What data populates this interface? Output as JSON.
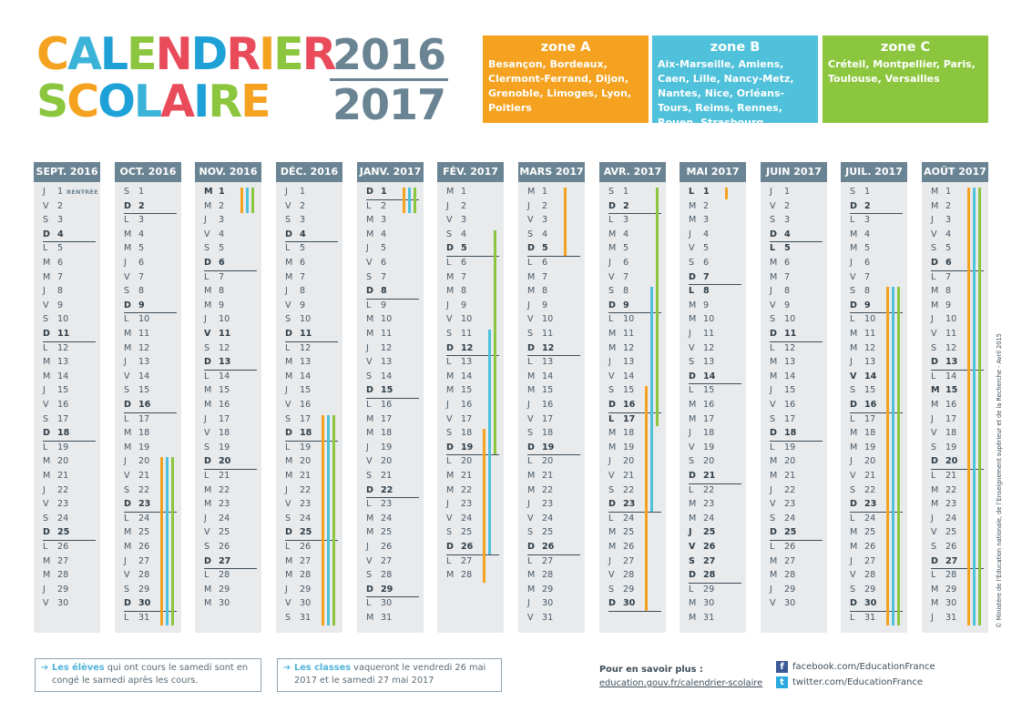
{
  "title": {
    "line1": [
      "C",
      "A",
      "L",
      "E",
      "N",
      "D",
      "R",
      "I",
      "E",
      "R"
    ],
    "line2": [
      "S",
      "C",
      "O",
      "L",
      "A",
      "I",
      "R",
      "E"
    ],
    "colors1": [
      "#f4a21f",
      "#3bb3d8",
      "#1ea1d6",
      "#8cc63e",
      "#e94b5a",
      "#1ea1d6",
      "#e94b5a",
      "#f4a21f",
      "#8cc63e",
      "#e94b5a"
    ],
    "colors2": [
      "#8cc63e",
      "#f4a21f",
      "#1ea1d6",
      "#3bb3d8",
      "#e94b5a",
      "#1ea1d6",
      "#8cc63e",
      "#f4a21f"
    ],
    "year1": "2016",
    "year2": "2017"
  },
  "zones": [
    {
      "name": "zone A",
      "cities": "Besançon, Bordeaux, Clermont-Ferrand, Dijon, Grenoble, Limoges, Lyon, Poitiers",
      "color": "#f4a21f"
    },
    {
      "name": "zone B",
      "cities": "Aix-Marseille, Amiens, Caen, Lille, Nancy-Metz, Nantes, Nice, Orléans-Tours, Reims, Rennes, Rouen, Strasbourg",
      "color": "#4fc1da"
    },
    {
      "name": "zone C",
      "cities": "Créteil, Montpellier, Paris, Toulouse, Versailles",
      "color": "#8cc63e"
    }
  ],
  "zone_colors": {
    "A": "#f4a21f",
    "B": "#4fc1da",
    "C": "#8cc63e"
  },
  "months": [
    {
      "label": "SEPT. 2016",
      "days": "JVSDLMMJVSDLMMJVSDLMMJVSDLMMJV",
      "sundays": [
        4,
        11,
        18,
        25
      ],
      "holidays": [],
      "note_day": 1,
      "note": "RENTRÉE",
      "bars": []
    },
    {
      "label": "OCT. 2016",
      "days": "SDLMMJVSDLMMJVSDLMMJVSDLMMJVSDL",
      "sundays": [
        2,
        9,
        16,
        23,
        30
      ],
      "holidays": [],
      "bars": [
        {
          "zone": "A",
          "from": 20,
          "to": 31
        },
        {
          "zone": "B",
          "from": 20,
          "to": 31
        },
        {
          "zone": "C",
          "from": 20,
          "to": 31
        }
      ]
    },
    {
      "label": "NOV. 2016",
      "days": "MMJVSDLMMJVSDLMMJVSDLMMJVSDLMM",
      "sundays": [
        6,
        13,
        20,
        27
      ],
      "holidays": [
        1,
        11
      ],
      "bars": [
        {
          "zone": "A",
          "from": 1,
          "to": 2
        },
        {
          "zone": "B",
          "from": 1,
          "to": 2
        },
        {
          "zone": "C",
          "from": 1,
          "to": 2
        }
      ]
    },
    {
      "label": "DÉC. 2016",
      "days": "JVSDLMMJVSDLMMJVSDLMMJVSDLMMJVS",
      "sundays": [
        4,
        11,
        18,
        25
      ],
      "holidays": [],
      "bars": [
        {
          "zone": "A",
          "from": 17,
          "to": 31
        },
        {
          "zone": "B",
          "from": 17,
          "to": 31
        },
        {
          "zone": "C",
          "from": 17,
          "to": 31
        }
      ]
    },
    {
      "label": "JANV. 2017",
      "days": "DLMMJVSDLMMJVSDLMMJVSDLMMJVSDLM",
      "sundays": [
        1,
        8,
        15,
        22,
        29
      ],
      "holidays": [
        1
      ],
      "bars": [
        {
          "zone": "A",
          "from": 1,
          "to": 2
        },
        {
          "zone": "B",
          "from": 1,
          "to": 2
        },
        {
          "zone": "C",
          "from": 1,
          "to": 2
        }
      ]
    },
    {
      "label": "FÉV. 2017",
      "days": "MJVSDLMMJVSDLMMJVSDLMMJVSDLM",
      "sundays": [
        5,
        12,
        19,
        26
      ],
      "holidays": [],
      "bars": [
        {
          "zone": "A",
          "from": 18,
          "to": 28
        },
        {
          "zone": "B",
          "from": 11,
          "to": 26
        },
        {
          "zone": "C",
          "from": 4,
          "to": 19
        }
      ]
    },
    {
      "label": "MARS 2017",
      "days": "MJVSDLMMJVSDLMMJVSDLMMJVSDLMMJV",
      "sundays": [
        5,
        12,
        19,
        26
      ],
      "holidays": [],
      "bars": [
        {
          "zone": "A",
          "from": 1,
          "to": 5
        }
      ]
    },
    {
      "label": "AVR. 2017",
      "days": "SDLMMJVSDLMMJVSDLMMJVSDLMMJVSD",
      "sundays": [
        2,
        9,
        16,
        23,
        30
      ],
      "holidays": [
        17
      ],
      "bars": [
        {
          "zone": "A",
          "from": 15,
          "to": 30
        },
        {
          "zone": "B",
          "from": 8,
          "to": 23
        },
        {
          "zone": "C",
          "from": 1,
          "to": 17
        }
      ]
    },
    {
      "label": "MAI 2017",
      "days": "LMMJVSDLMMJVSDLMMJVSDLMMJVSDLMM",
      "sundays": [
        7,
        14,
        21,
        28
      ],
      "holidays": [
        1,
        8,
        25,
        26,
        27
      ],
      "bars": [
        {
          "zone": "A",
          "from": 1,
          "to": 1
        }
      ]
    },
    {
      "label": "JUIN 2017",
      "days": "JVSDLMMJVSDLMMJVSDLMMJVSDLMMJV",
      "sundays": [
        4,
        11,
        18,
        25
      ],
      "holidays": [
        5
      ],
      "bars": []
    },
    {
      "label": "JUIL. 2017",
      "days": "SDLMMJVSDLMMJVSDLMMJVSDLMMJVSDL",
      "sundays": [
        2,
        9,
        16,
        23,
        30
      ],
      "holidays": [
        14
      ],
      "bars": [
        {
          "zone": "A",
          "from": 8,
          "to": 31
        },
        {
          "zone": "B",
          "from": 8,
          "to": 31
        },
        {
          "zone": "C",
          "from": 8,
          "to": 31
        }
      ]
    },
    {
      "label": "AOÛT 2017",
      "days": "MMJVSDLMMJVSDLMMJVSDLMMJVSDLMMJ",
      "sundays": [
        6,
        13,
        20,
        27
      ],
      "holidays": [
        15
      ],
      "bars": [
        {
          "zone": "A",
          "from": 1,
          "to": 31
        },
        {
          "zone": "B",
          "from": 1,
          "to": 31
        },
        {
          "zone": "C",
          "from": 1,
          "to": 31
        }
      ]
    }
  ],
  "footer": {
    "note1_bold": "Les élèves",
    "note1_rest": " qui ont cours le samedi sont en congé le samedi après les cours.",
    "note2_bold": "Les classes",
    "note2_rest": " vaqueront le vendredi 26 mai 2017 et le samedi 27 mai 2017",
    "more_title": "Pour en savoir plus :",
    "more_link": "education.gouv.fr/calendrier-scolaire",
    "facebook": "facebook.com/EducationFrance",
    "twitter": "twitter.com/EducationFrance",
    "arrow": "➔"
  },
  "side_credit": "© Ministère de l’Éducation nationale, de l’Enseignement supérieur et de la Recherche - Avril 2015"
}
